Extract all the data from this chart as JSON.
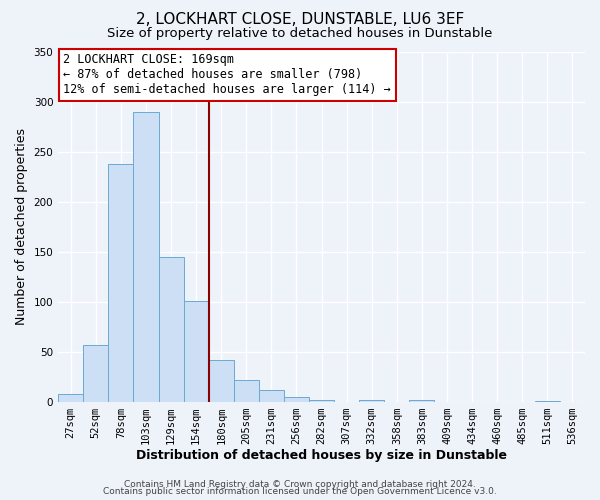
{
  "title": "2, LOCKHART CLOSE, DUNSTABLE, LU6 3EF",
  "subtitle": "Size of property relative to detached houses in Dunstable",
  "xlabel": "Distribution of detached houses by size in Dunstable",
  "ylabel": "Number of detached properties",
  "bar_labels": [
    "27sqm",
    "52sqm",
    "78sqm",
    "103sqm",
    "129sqm",
    "154sqm",
    "180sqm",
    "205sqm",
    "231sqm",
    "256sqm",
    "282sqm",
    "307sqm",
    "332sqm",
    "358sqm",
    "383sqm",
    "409sqm",
    "434sqm",
    "460sqm",
    "485sqm",
    "511sqm",
    "536sqm"
  ],
  "bar_values": [
    8,
    57,
    238,
    290,
    145,
    101,
    42,
    22,
    12,
    5,
    2,
    0,
    2,
    0,
    2,
    0,
    0,
    0,
    0,
    1,
    0
  ],
  "bar_color": "#ccdff5",
  "bar_edge_color": "#6aaad4",
  "vline_x": 5.5,
  "vline_color": "#8b0000",
  "annotation_line1": "2 LOCKHART CLOSE: 169sqm",
  "annotation_line2": "← 87% of detached houses are smaller (798)",
  "annotation_line3": "12% of semi-detached houses are larger (114) →",
  "annotation_box_color": "#ffffff",
  "annotation_box_edge_color": "#cc0000",
  "ylim": [
    0,
    350
  ],
  "yticks": [
    0,
    50,
    100,
    150,
    200,
    250,
    300,
    350
  ],
  "footer1": "Contains HM Land Registry data © Crown copyright and database right 2024.",
  "footer2": "Contains public sector information licensed under the Open Government Licence v3.0.",
  "background_color": "#eef2f9",
  "grid_color": "#ffffff",
  "title_fontsize": 11,
  "subtitle_fontsize": 9.5,
  "axis_label_fontsize": 9,
  "tick_fontsize": 7.5,
  "annotation_fontsize": 8.5,
  "footer_fontsize": 6.5
}
